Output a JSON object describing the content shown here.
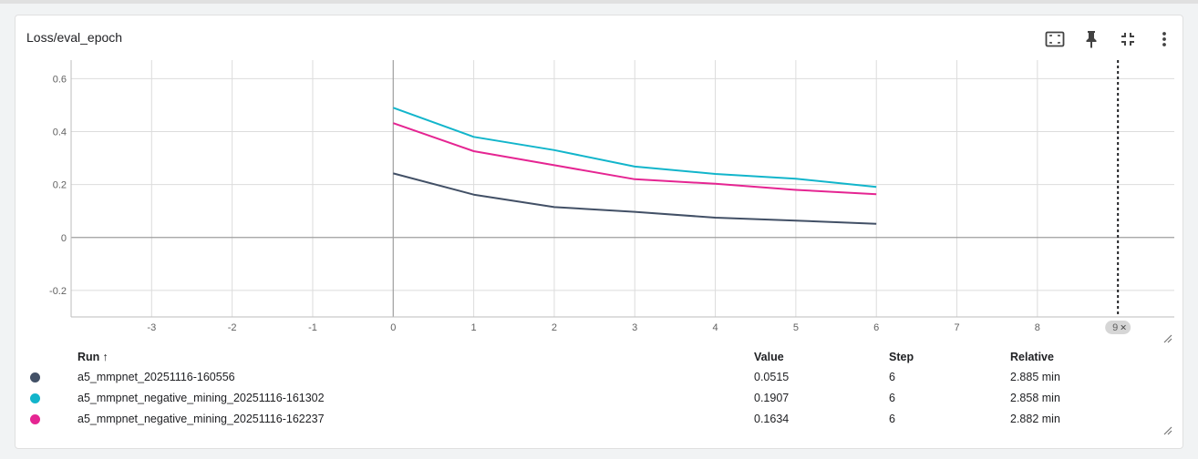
{
  "card": {
    "title": "Loss/eval_epoch"
  },
  "toolbar": {
    "icons": [
      "fit-domain-icon",
      "pin-icon",
      "collapse-icon",
      "more-vert-icon"
    ]
  },
  "marker": {
    "label": "9",
    "close": "×"
  },
  "chart_data": {
    "type": "line",
    "title": "Loss/eval_epoch",
    "xlabel": "",
    "ylabel": "",
    "xlim": [
      -4,
      9.7
    ],
    "ylim": [
      -0.3,
      0.67
    ],
    "x_ticks": [
      -3,
      -2,
      -1,
      0,
      1,
      2,
      3,
      4,
      5,
      6,
      7,
      8
    ],
    "y_ticks": [
      -0.2,
      0,
      0.2,
      0.4,
      0.6
    ],
    "x_tick_labels": [
      "-3",
      "-2",
      "-1",
      "0",
      "1",
      "2",
      "3",
      "4",
      "5",
      "6",
      "7",
      "8"
    ],
    "y_tick_labels": [
      "-0.2",
      "0",
      "0.2",
      "0.4",
      "0.6"
    ],
    "grid": true,
    "step_marker": 9,
    "series": [
      {
        "name": "a5_mmpnet_20251116-160556",
        "color": "#425066",
        "x": [
          0,
          1,
          2,
          3,
          4,
          5,
          6
        ],
        "y": [
          0.242,
          0.162,
          0.115,
          0.097,
          0.075,
          0.064,
          0.0515
        ]
      },
      {
        "name": "a5_mmpnet_negative_mining_20251116-161302",
        "color": "#12b5cb",
        "x": [
          0,
          1,
          2,
          3,
          4,
          5,
          6
        ],
        "y": [
          0.49,
          0.38,
          0.33,
          0.268,
          0.24,
          0.222,
          0.1907
        ]
      },
      {
        "name": "a5_mmpnet_negative_mining_20251116-162237",
        "color": "#e52592",
        "x": [
          0,
          1,
          2,
          3,
          4,
          5,
          6
        ],
        "y": [
          0.432,
          0.326,
          0.273,
          0.22,
          0.203,
          0.18,
          0.1634
        ]
      }
    ]
  },
  "table": {
    "headers": {
      "run": "Run",
      "sort": "↑",
      "value": "Value",
      "step": "Step",
      "relative": "Relative"
    },
    "rows": [
      {
        "color": "#425066",
        "run": "a5_mmpnet_20251116-160556",
        "value": "0.0515",
        "step": "6",
        "relative": "2.885 min"
      },
      {
        "color": "#12b5cb",
        "run": "a5_mmpnet_negative_mining_20251116-161302",
        "value": "0.1907",
        "step": "6",
        "relative": "2.858 min"
      },
      {
        "color": "#e52592",
        "run": "a5_mmpnet_negative_mining_20251116-162237",
        "value": "0.1634",
        "step": "6",
        "relative": "2.882 min"
      }
    ]
  }
}
